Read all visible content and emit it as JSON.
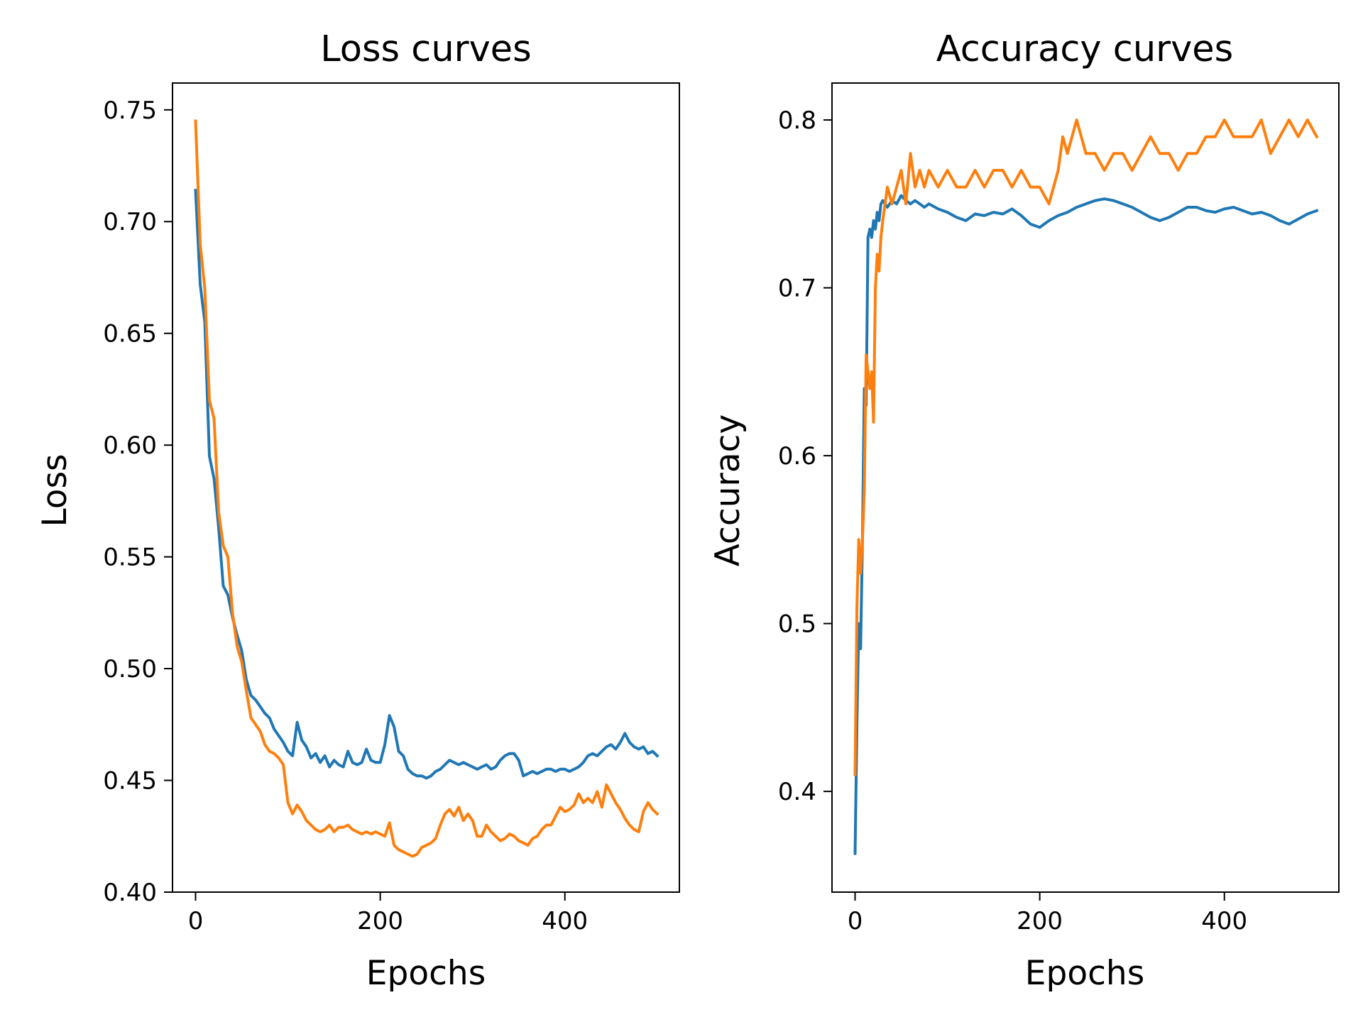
{
  "chart_data": [
    {
      "type": "line",
      "title": "Loss curves",
      "xlabel": "Epochs",
      "ylabel": "Loss",
      "xlim": [
        -25,
        524
      ],
      "ylim": [
        0.4,
        0.762
      ],
      "xticks": [
        0,
        200,
        400
      ],
      "xtick_labels": [
        "0",
        "200",
        "400"
      ],
      "yticks": [
        0.4,
        0.45,
        0.5,
        0.55,
        0.6,
        0.65,
        0.7,
        0.75
      ],
      "ytick_labels": [
        "0.40",
        "0.45",
        "0.50",
        "0.55",
        "0.60",
        "0.65",
        "0.70",
        "0.75"
      ],
      "grid": false,
      "legend": "none",
      "series": [
        {
          "color": "#1f77b4",
          "x": [
            0,
            5,
            10,
            15,
            20,
            25,
            30,
            35,
            40,
            45,
            50,
            55,
            60,
            65,
            70,
            75,
            80,
            85,
            90,
            95,
            100,
            105,
            110,
            115,
            120,
            125,
            130,
            135,
            140,
            145,
            150,
            155,
            160,
            165,
            170,
            175,
            180,
            185,
            190,
            195,
            200,
            205,
            210,
            215,
            220,
            225,
            230,
            235,
            240,
            245,
            250,
            255,
            260,
            265,
            270,
            275,
            280,
            285,
            290,
            295,
            300,
            305,
            310,
            315,
            320,
            325,
            330,
            335,
            340,
            345,
            350,
            355,
            360,
            365,
            370,
            375,
            380,
            385,
            390,
            395,
            400,
            405,
            410,
            415,
            420,
            425,
            430,
            435,
            440,
            445,
            450,
            455,
            460,
            465,
            470,
            475,
            480,
            485,
            490,
            495,
            500
          ],
          "y": [
            0.714,
            0.672,
            0.655,
            0.595,
            0.585,
            0.563,
            0.537,
            0.533,
            0.523,
            0.515,
            0.508,
            0.495,
            0.488,
            0.486,
            0.483,
            0.48,
            0.478,
            0.473,
            0.47,
            0.467,
            0.463,
            0.461,
            0.476,
            0.468,
            0.465,
            0.46,
            0.462,
            0.458,
            0.461,
            0.456,
            0.459,
            0.457,
            0.456,
            0.463,
            0.458,
            0.457,
            0.458,
            0.464,
            0.459,
            0.458,
            0.458,
            0.466,
            0.479,
            0.474,
            0.463,
            0.461,
            0.455,
            0.453,
            0.452,
            0.452,
            0.451,
            0.452,
            0.454,
            0.455,
            0.457,
            0.459,
            0.458,
            0.457,
            0.458,
            0.457,
            0.456,
            0.455,
            0.456,
            0.457,
            0.455,
            0.456,
            0.459,
            0.461,
            0.462,
            0.462,
            0.459,
            0.452,
            0.453,
            0.454,
            0.453,
            0.454,
            0.455,
            0.455,
            0.454,
            0.455,
            0.455,
            0.454,
            0.455,
            0.456,
            0.458,
            0.461,
            0.462,
            0.461,
            0.463,
            0.465,
            0.466,
            0.464,
            0.467,
            0.471,
            0.467,
            0.465,
            0.464,
            0.465,
            0.462,
            0.463,
            0.461
          ]
        },
        {
          "color": "#ff7f0e",
          "x": [
            0,
            5,
            10,
            15,
            20,
            25,
            30,
            35,
            40,
            45,
            50,
            55,
            60,
            65,
            70,
            75,
            80,
            85,
            90,
            95,
            100,
            105,
            110,
            115,
            120,
            125,
            130,
            135,
            140,
            145,
            150,
            155,
            160,
            165,
            170,
            175,
            180,
            185,
            190,
            195,
            200,
            205,
            210,
            215,
            220,
            225,
            230,
            235,
            240,
            245,
            250,
            255,
            260,
            265,
            270,
            275,
            280,
            285,
            290,
            295,
            300,
            305,
            310,
            315,
            320,
            325,
            330,
            335,
            340,
            345,
            350,
            355,
            360,
            365,
            370,
            375,
            380,
            385,
            390,
            395,
            400,
            405,
            410,
            415,
            420,
            425,
            430,
            435,
            440,
            445,
            450,
            455,
            460,
            465,
            470,
            475,
            480,
            485,
            490,
            495,
            500
          ],
          "y": [
            0.745,
            0.69,
            0.67,
            0.62,
            0.612,
            0.57,
            0.555,
            0.55,
            0.525,
            0.51,
            0.503,
            0.49,
            0.478,
            0.475,
            0.472,
            0.466,
            0.463,
            0.462,
            0.46,
            0.457,
            0.44,
            0.435,
            0.439,
            0.436,
            0.432,
            0.43,
            0.428,
            0.427,
            0.428,
            0.43,
            0.427,
            0.429,
            0.429,
            0.43,
            0.428,
            0.427,
            0.426,
            0.427,
            0.426,
            0.427,
            0.426,
            0.425,
            0.431,
            0.421,
            0.419,
            0.418,
            0.417,
            0.416,
            0.417,
            0.42,
            0.421,
            0.422,
            0.424,
            0.43,
            0.435,
            0.437,
            0.434,
            0.438,
            0.432,
            0.435,
            0.432,
            0.425,
            0.425,
            0.43,
            0.427,
            0.425,
            0.423,
            0.424,
            0.426,
            0.425,
            0.423,
            0.422,
            0.421,
            0.424,
            0.425,
            0.428,
            0.43,
            0.43,
            0.434,
            0.438,
            0.436,
            0.437,
            0.439,
            0.444,
            0.44,
            0.442,
            0.44,
            0.445,
            0.438,
            0.448,
            0.444,
            0.44,
            0.437,
            0.433,
            0.43,
            0.428,
            0.427,
            0.436,
            0.44,
            0.437,
            0.435
          ]
        }
      ]
    },
    {
      "type": "line",
      "title": "Accuracy curves",
      "xlabel": "Epochs",
      "ylabel": "Accuracy",
      "xlim": [
        -25,
        524
      ],
      "ylim": [
        0.34,
        0.822
      ],
      "xticks": [
        0,
        200,
        400
      ],
      "xtick_labels": [
        "0",
        "200",
        "400"
      ],
      "yticks": [
        0.4,
        0.5,
        0.6,
        0.7,
        0.8
      ],
      "ytick_labels": [
        "0.4",
        "0.5",
        "0.6",
        "0.7",
        "0.8"
      ],
      "grid": false,
      "legend": "none",
      "series": [
        {
          "color": "#1f77b4",
          "x": [
            0,
            2,
            4,
            6,
            8,
            10,
            12,
            14,
            16,
            18,
            20,
            22,
            24,
            26,
            28,
            30,
            35,
            40,
            45,
            50,
            55,
            60,
            65,
            70,
            75,
            80,
            90,
            100,
            110,
            120,
            130,
            140,
            150,
            160,
            170,
            180,
            190,
            200,
            210,
            220,
            230,
            240,
            250,
            260,
            270,
            280,
            290,
            300,
            310,
            320,
            330,
            340,
            350,
            360,
            370,
            380,
            390,
            400,
            410,
            420,
            430,
            440,
            450,
            460,
            470,
            480,
            490,
            500
          ],
          "y": [
            0.363,
            0.44,
            0.5,
            0.485,
            0.55,
            0.64,
            0.63,
            0.73,
            0.735,
            0.73,
            0.74,
            0.735,
            0.745,
            0.74,
            0.75,
            0.752,
            0.748,
            0.752,
            0.75,
            0.755,
            0.752,
            0.75,
            0.752,
            0.75,
            0.748,
            0.75,
            0.747,
            0.745,
            0.742,
            0.74,
            0.744,
            0.743,
            0.745,
            0.744,
            0.747,
            0.743,
            0.738,
            0.736,
            0.74,
            0.743,
            0.745,
            0.748,
            0.75,
            0.752,
            0.753,
            0.752,
            0.75,
            0.748,
            0.745,
            0.742,
            0.74,
            0.742,
            0.745,
            0.748,
            0.748,
            0.746,
            0.745,
            0.747,
            0.748,
            0.746,
            0.744,
            0.745,
            0.743,
            0.74,
            0.738,
            0.741,
            0.744,
            0.746
          ]
        },
        {
          "color": "#ff7f0e",
          "x": [
            0,
            2,
            4,
            6,
            8,
            10,
            12,
            14,
            16,
            18,
            20,
            22,
            24,
            26,
            28,
            30,
            35,
            40,
            45,
            50,
            55,
            60,
            65,
            70,
            75,
            80,
            90,
            100,
            110,
            120,
            130,
            140,
            150,
            160,
            170,
            180,
            190,
            200,
            210,
            220,
            225,
            230,
            240,
            250,
            260,
            270,
            280,
            290,
            300,
            310,
            320,
            330,
            340,
            350,
            360,
            370,
            380,
            390,
            400,
            410,
            420,
            430,
            440,
            450,
            460,
            470,
            480,
            490,
            500
          ],
          "y": [
            0.41,
            0.51,
            0.55,
            0.53,
            0.55,
            0.58,
            0.66,
            0.65,
            0.64,
            0.65,
            0.62,
            0.7,
            0.72,
            0.71,
            0.73,
            0.74,
            0.76,
            0.75,
            0.76,
            0.77,
            0.75,
            0.78,
            0.76,
            0.77,
            0.76,
            0.77,
            0.76,
            0.77,
            0.76,
            0.76,
            0.77,
            0.76,
            0.77,
            0.77,
            0.76,
            0.77,
            0.76,
            0.76,
            0.75,
            0.77,
            0.79,
            0.78,
            0.8,
            0.78,
            0.78,
            0.77,
            0.78,
            0.78,
            0.77,
            0.78,
            0.79,
            0.78,
            0.78,
            0.77,
            0.78,
            0.78,
            0.79,
            0.79,
            0.8,
            0.79,
            0.79,
            0.79,
            0.8,
            0.78,
            0.79,
            0.8,
            0.79,
            0.8,
            0.79
          ]
        }
      ]
    }
  ]
}
